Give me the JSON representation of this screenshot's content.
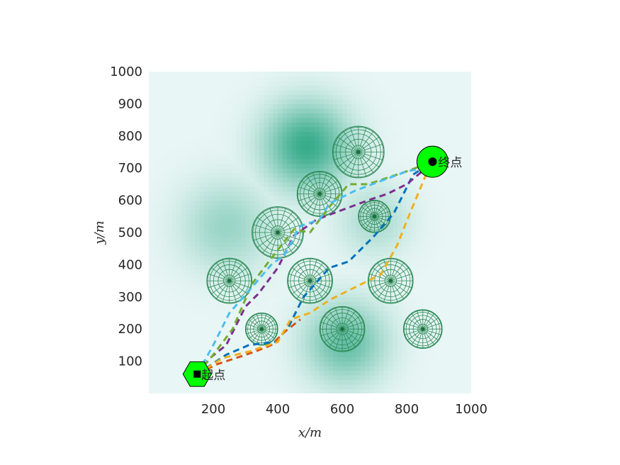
{
  "chart_data": {
    "type": "scatter",
    "title": "",
    "xlabel": "x/m",
    "ylabel": "y/m",
    "xlim": [
      0,
      1000
    ],
    "ylim": [
      0,
      1000
    ],
    "xticks": [
      200,
      400,
      600,
      800,
      1000
    ],
    "yticks": [
      100,
      200,
      300,
      400,
      500,
      600,
      700,
      800,
      900,
      1000
    ],
    "grid": false,
    "legend": "none",
    "background": {
      "colormap": [
        "#e9f6f6",
        "#2fa886"
      ],
      "peaks": [
        {
          "x": 490,
          "y": 770,
          "spread": 95,
          "height": 1.0
        },
        {
          "x": 610,
          "y": 160,
          "spread": 90,
          "height": 0.75
        },
        {
          "x": 240,
          "y": 520,
          "spread": 100,
          "height": 0.45
        },
        {
          "x": 700,
          "y": 540,
          "spread": 80,
          "height": 0.35
        }
      ]
    },
    "obstacles": [
      {
        "x": 650,
        "y": 750,
        "r": 80
      },
      {
        "x": 530,
        "y": 620,
        "r": 70
      },
      {
        "x": 400,
        "y": 500,
        "r": 80
      },
      {
        "x": 700,
        "y": 550,
        "r": 50
      },
      {
        "x": 250,
        "y": 350,
        "r": 70
      },
      {
        "x": 500,
        "y": 350,
        "r": 70
      },
      {
        "x": 750,
        "y": 350,
        "r": 70
      },
      {
        "x": 350,
        "y": 200,
        "r": 50
      },
      {
        "x": 600,
        "y": 200,
        "r": 70
      },
      {
        "x": 850,
        "y": 200,
        "r": 60
      }
    ],
    "start": {
      "x": 150,
      "y": 60,
      "label": "起点",
      "color": "#00ff00"
    },
    "goal": {
      "x": 880,
      "y": 720,
      "label": "终点",
      "color": "#00ff00"
    },
    "series": [
      {
        "color": "#0072bd",
        "x": [
          150,
          240,
          310,
          390,
          430,
          480,
          560,
          620,
          700,
          760,
          820,
          880
        ],
        "y": [
          60,
          120,
          150,
          160,
          200,
          300,
          390,
          410,
          490,
          560,
          680,
          720
        ]
      },
      {
        "color": "#d95319",
        "x": [
          150,
          210,
          270,
          330,
          380,
          420,
          470
        ],
        "y": [
          60,
          90,
          110,
          130,
          150,
          190,
          230
        ]
      },
      {
        "color": "#edb120",
        "x": [
          150,
          230,
          310,
          400,
          440,
          500,
          560,
          640,
          720,
          770,
          810,
          860,
          880
        ],
        "y": [
          60,
          110,
          130,
          160,
          230,
          250,
          290,
          330,
          370,
          460,
          560,
          680,
          720
        ]
      },
      {
        "color": "#7e2f8e",
        "x": [
          150,
          190,
          240,
          300,
          340,
          400,
          450,
          520,
          600,
          680,
          740,
          800,
          860,
          880
        ],
        "y": [
          60,
          110,
          150,
          270,
          310,
          390,
          490,
          540,
          570,
          600,
          620,
          650,
          700,
          720
        ]
      },
      {
        "color": "#77ac30",
        "x": [
          150,
          200,
          260,
          320,
          380,
          450,
          500,
          560,
          620,
          680,
          740,
          800,
          880
        ],
        "y": [
          60,
          120,
          200,
          340,
          420,
          510,
          500,
          580,
          650,
          650,
          670,
          690,
          720
        ]
      },
      {
        "color": "#4dbeee",
        "x": [
          150,
          200,
          250,
          320,
          380,
          420,
          470,
          530,
          560,
          640,
          720,
          800,
          860,
          880
        ],
        "y": [
          60,
          150,
          250,
          330,
          400,
          430,
          520,
          540,
          590,
          630,
          660,
          690,
          700,
          720
        ]
      }
    ]
  }
}
